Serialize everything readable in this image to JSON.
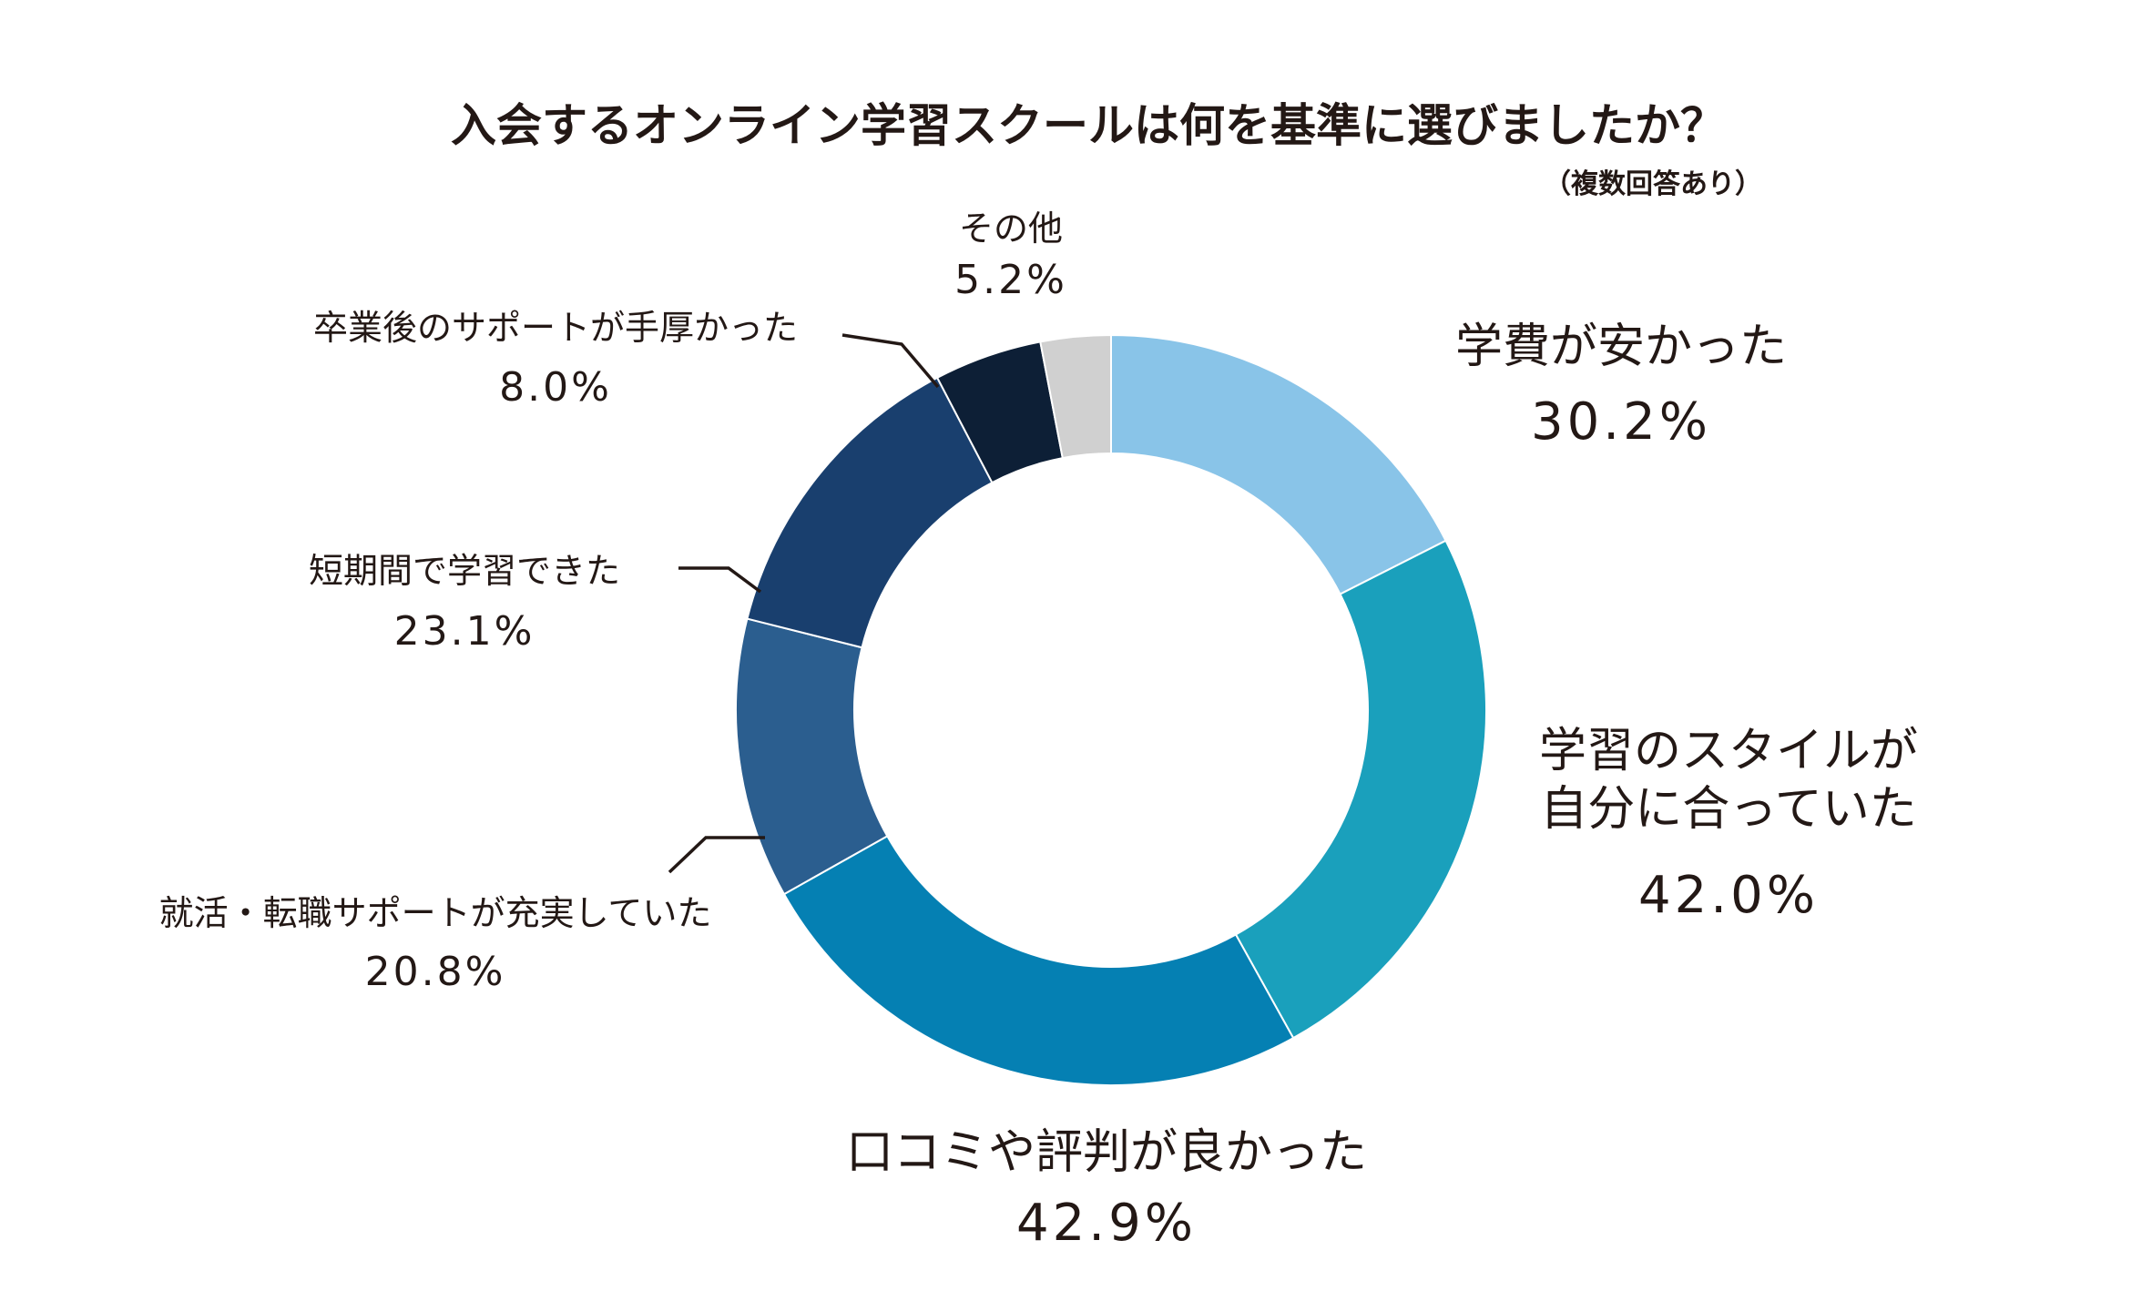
{
  "chart_data": {
    "type": "pie",
    "variant": "donut",
    "title": "入会するオンライン学習スクールは何を基準に選びましたか？",
    "subtitle": "（複数回答あり）",
    "unit": "%",
    "slices": [
      {
        "label": "学費が安かった",
        "value": 30.2,
        "value_text": "30.2%",
        "color": "#89c4e8"
      },
      {
        "label_lines": [
          "学習のスタイルが",
          "自分に合っていた"
        ],
        "value": 42.0,
        "value_text": "42.0%",
        "color": "#1aa0bc"
      },
      {
        "label": "口コミや評判が良かった",
        "value": 42.9,
        "value_text": "42.9%",
        "color": "#0580b3"
      },
      {
        "label": "就活・転職サポートが充実していた",
        "value": 20.8,
        "value_text": "20.8%",
        "color": "#2b5e8f"
      },
      {
        "label": "短期間で学習できた",
        "value": 23.1,
        "value_text": "23.1%",
        "color": "#193f6e"
      },
      {
        "label": "卒業後のサポートが手厚かった",
        "value": 8.0,
        "value_text": "8.0%",
        "color": "#0d1f36"
      },
      {
        "label": "その他",
        "value": 5.2,
        "value_text": "5.2%",
        "color": "#d0d0d0"
      }
    ]
  }
}
